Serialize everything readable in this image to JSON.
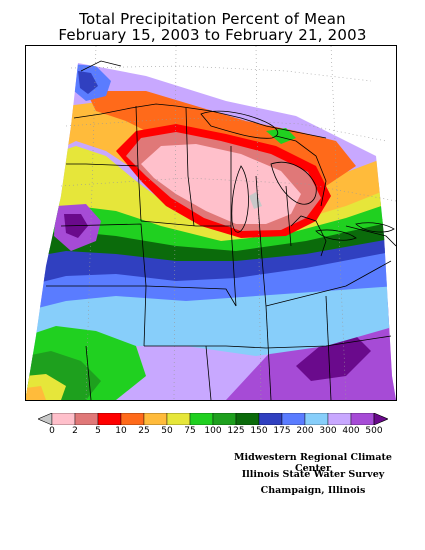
{
  "title": {
    "line1": "Total Precipitation Percent of Mean",
    "line2": "February 15, 2003 to February 21, 2003"
  },
  "legend": {
    "unit": "percent of mean",
    "labels": [
      "0",
      "2",
      "5",
      "10",
      "25",
      "50",
      "75",
      "100",
      "125",
      "150",
      "175",
      "200",
      "300",
      "400",
      "500"
    ],
    "colors": [
      "#c8c8c8",
      "#ffc0cb",
      "#e07878",
      "#ff0000",
      "#ff6a1a",
      "#ffbb3b",
      "#e6e63a",
      "#20d020",
      "#1ea01e",
      "#0b6b0b",
      "#3040c0",
      "#5a7cff",
      "#87cefa",
      "#c8a8ff",
      "#a64bd6",
      "#6a0a8c"
    ]
  },
  "credits": {
    "line1": "Midwestern Regional Climate Center",
    "line2": "Illinois State Water Survey",
    "line3": "Champaign, Illinois"
  }
}
